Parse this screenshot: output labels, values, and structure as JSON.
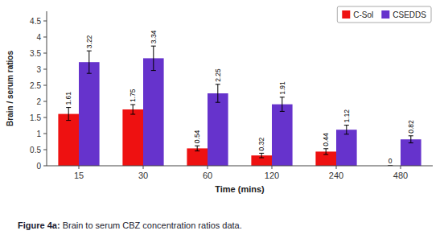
{
  "chart_data": {
    "type": "bar",
    "xlabel": "Time (mins)",
    "ylabel": "Brain / serum ratios",
    "categories": [
      "15",
      "30",
      "60",
      "120",
      "240",
      "480"
    ],
    "series": [
      {
        "name": "C-Sol",
        "color": "#ee1111",
        "values": [
          1.61,
          1.75,
          0.54,
          0.32,
          0.44,
          0
        ],
        "errors": [
          0.2,
          0.15,
          0.08,
          0.07,
          0.09,
          0
        ]
      },
      {
        "name": "CSEDDS",
        "color": "#6633cc",
        "values": [
          3.22,
          3.34,
          2.25,
          1.91,
          1.12,
          0.82
        ],
        "errors": [
          0.35,
          0.38,
          0.28,
          0.22,
          0.14,
          0.11
        ]
      }
    ],
    "ylim": [
      0,
      4.8
    ],
    "yticks": [
      0,
      0.5,
      1,
      1.5,
      2,
      2.5,
      3,
      3.5,
      4,
      4.5
    ],
    "grid": false,
    "legend": "upper right",
    "data_labels": true,
    "annotations": [
      "Figure 4a:",
      " Brain to serum CBZ concentration ratios data."
    ]
  }
}
